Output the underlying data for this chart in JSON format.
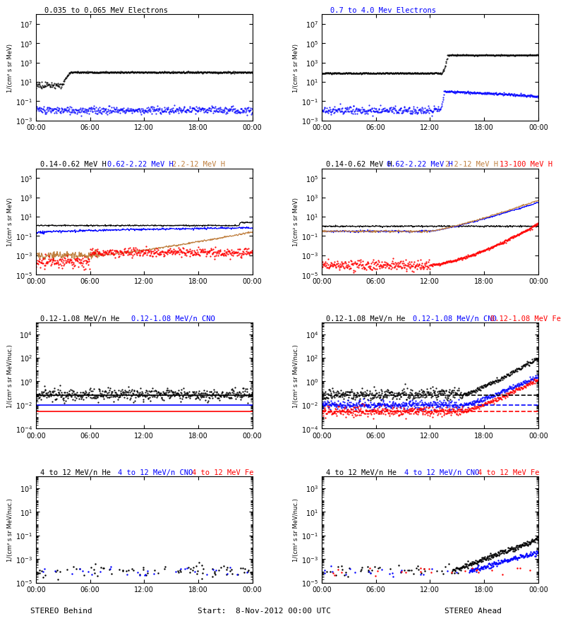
{
  "title_L0": "0.035 to 0.065 MeV Electrons",
  "title_R0": "0.7 to 4.0 Mev Electrons",
  "title_L1_1": "0.14-0.62 MeV H",
  "title_L1_2": "0.62-2.22 MeV H",
  "title_L1_3": "2.2-12 MeV H",
  "title_L1_4": "13-100 MeV H",
  "title_L2_1": "0.12-1.08 MeV/n He",
  "title_L2_2": "0.12-1.08 MeV/n CNO",
  "title_L2_3": "0.12-1.08 MeV Fe",
  "title_L3_1": "4 to 12 MeV/n He",
  "title_L3_2": "4 to 12 MeV/n CNO",
  "title_L3_3": "4 to 12 MeV Fe",
  "xlabel_left": "STEREO Behind",
  "xlabel_right": "STEREO Ahead",
  "xlabel_center": "Start:  8-Nov-2012 00:00 UTC",
  "ylabel_e": "1/(cm² s sr MeV)",
  "ylabel_h": "1/(cm² s sr MeV)",
  "ylabel_hvy": "1/(cm² s sr MeV/nuc.)",
  "xtick_labels": [
    "00:00",
    "06:00",
    "12:00",
    "18:00",
    "00:00"
  ],
  "background": "#ffffff",
  "n": 500,
  "seed": 7
}
